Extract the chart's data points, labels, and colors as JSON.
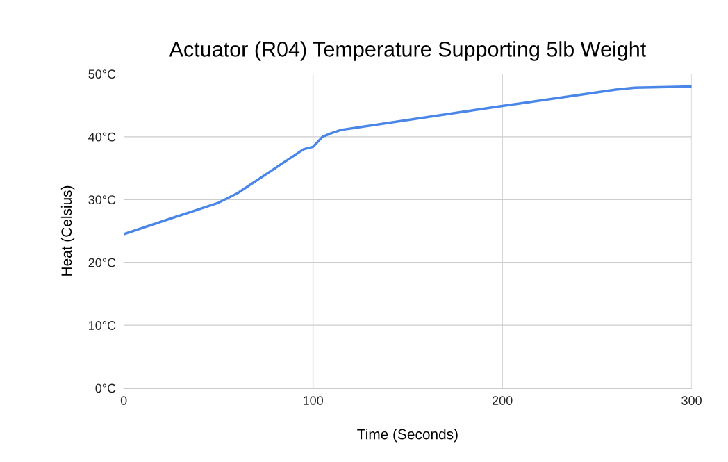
{
  "chart_data": {
    "type": "line",
    "title": "Actuator (R04) Temperature Supporting 5lb Weight",
    "xlabel": "Time (Seconds)",
    "ylabel": "Heat (Celsius)",
    "x": [
      0,
      50,
      60,
      95,
      100,
      105,
      110,
      115,
      200,
      260,
      270,
      300
    ],
    "series": [
      {
        "color": "#4a86e8",
        "values": [
          24.5,
          29.5,
          31,
          38,
          38.4,
          40,
          40.6,
          41.1,
          44.9,
          47.5,
          47.8,
          48
        ]
      }
    ],
    "xlim": [
      0,
      300
    ],
    "ylim": [
      0,
      50
    ],
    "xticks": [
      0,
      100,
      200,
      300
    ],
    "yticks": [
      {
        "value": 0,
        "label": "0°C"
      },
      {
        "value": 10,
        "label": "10°C"
      },
      {
        "value": 20,
        "label": "20°C"
      },
      {
        "value": 30,
        "label": "30°C"
      },
      {
        "value": 40,
        "label": "40°C"
      },
      {
        "value": 50,
        "label": "50°C"
      }
    ],
    "grid": true,
    "marker": "none",
    "line_style": "solid"
  }
}
